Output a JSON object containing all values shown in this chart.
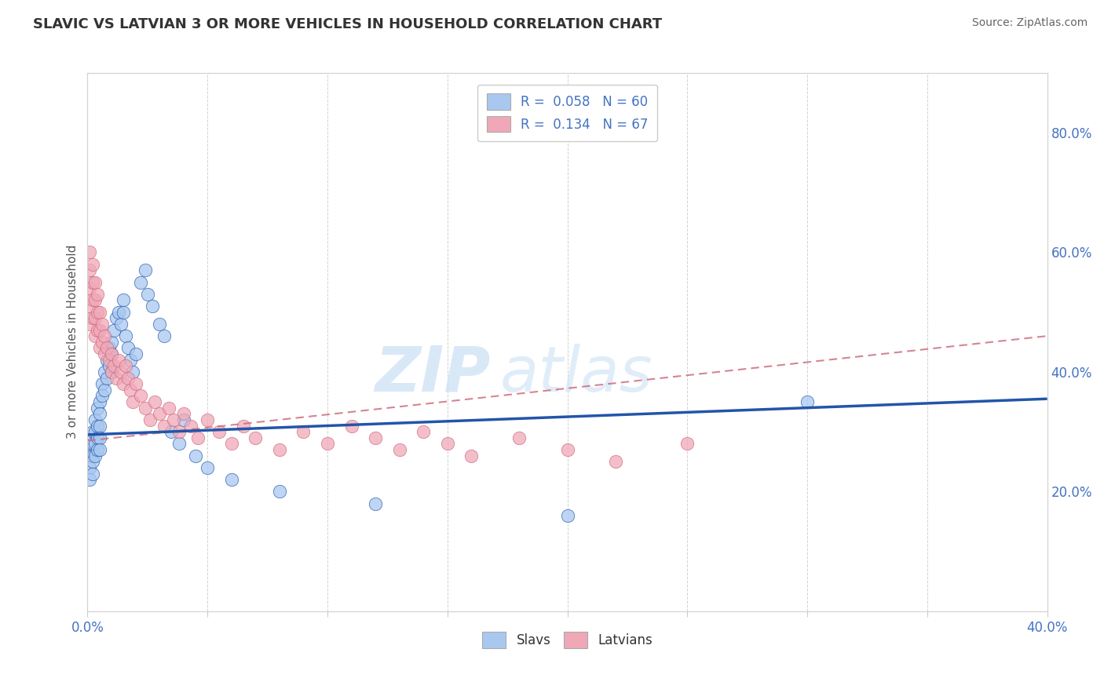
{
  "title": "SLAVIC VS LATVIAN 3 OR MORE VEHICLES IN HOUSEHOLD CORRELATION CHART",
  "source_text": "Source: ZipAtlas.com",
  "ylabel": "3 or more Vehicles in Household",
  "xlim": [
    0.0,
    0.4
  ],
  "ylim": [
    0.0,
    0.9
  ],
  "slav_color": "#a8c8f0",
  "latvian_color": "#f0a8b8",
  "slav_line_color": "#2255aa",
  "latvian_line_color": "#cc6677",
  "watermark_zip": "ZIP",
  "watermark_atlas": "atlas",
  "slav_scatter_x": [
    0.001,
    0.001,
    0.001,
    0.001,
    0.002,
    0.002,
    0.002,
    0.002,
    0.002,
    0.003,
    0.003,
    0.003,
    0.003,
    0.004,
    0.004,
    0.004,
    0.004,
    0.005,
    0.005,
    0.005,
    0.005,
    0.005,
    0.006,
    0.006,
    0.007,
    0.007,
    0.008,
    0.008,
    0.009,
    0.009,
    0.01,
    0.01,
    0.01,
    0.011,
    0.012,
    0.013,
    0.014,
    0.015,
    0.015,
    0.016,
    0.017,
    0.018,
    0.019,
    0.02,
    0.022,
    0.024,
    0.025,
    0.027,
    0.03,
    0.032,
    0.035,
    0.038,
    0.04,
    0.045,
    0.05,
    0.06,
    0.08,
    0.12,
    0.2,
    0.3
  ],
  "slav_scatter_y": [
    0.27,
    0.26,
    0.24,
    0.22,
    0.3,
    0.28,
    0.26,
    0.25,
    0.23,
    0.32,
    0.3,
    0.28,
    0.26,
    0.34,
    0.31,
    0.29,
    0.27,
    0.35,
    0.33,
    0.31,
    0.29,
    0.27,
    0.38,
    0.36,
    0.4,
    0.37,
    0.42,
    0.39,
    0.44,
    0.41,
    0.45,
    0.43,
    0.4,
    0.47,
    0.49,
    0.5,
    0.48,
    0.52,
    0.5,
    0.46,
    0.44,
    0.42,
    0.4,
    0.43,
    0.55,
    0.57,
    0.53,
    0.51,
    0.48,
    0.46,
    0.3,
    0.28,
    0.32,
    0.26,
    0.24,
    0.22,
    0.2,
    0.18,
    0.16,
    0.35
  ],
  "latvian_scatter_x": [
    0.001,
    0.001,
    0.001,
    0.001,
    0.001,
    0.002,
    0.002,
    0.002,
    0.002,
    0.003,
    0.003,
    0.003,
    0.003,
    0.004,
    0.004,
    0.004,
    0.005,
    0.005,
    0.005,
    0.006,
    0.006,
    0.007,
    0.007,
    0.008,
    0.009,
    0.01,
    0.01,
    0.011,
    0.012,
    0.013,
    0.014,
    0.015,
    0.016,
    0.017,
    0.018,
    0.019,
    0.02,
    0.022,
    0.024,
    0.026,
    0.028,
    0.03,
    0.032,
    0.034,
    0.036,
    0.038,
    0.04,
    0.043,
    0.046,
    0.05,
    0.055,
    0.06,
    0.065,
    0.07,
    0.08,
    0.09,
    0.1,
    0.11,
    0.12,
    0.13,
    0.14,
    0.15,
    0.16,
    0.18,
    0.2,
    0.22,
    0.25
  ],
  "latvian_scatter_y": [
    0.6,
    0.57,
    0.54,
    0.51,
    0.48,
    0.58,
    0.55,
    0.52,
    0.49,
    0.55,
    0.52,
    0.49,
    0.46,
    0.53,
    0.5,
    0.47,
    0.5,
    0.47,
    0.44,
    0.48,
    0.45,
    0.46,
    0.43,
    0.44,
    0.42,
    0.4,
    0.43,
    0.41,
    0.39,
    0.42,
    0.4,
    0.38,
    0.41,
    0.39,
    0.37,
    0.35,
    0.38,
    0.36,
    0.34,
    0.32,
    0.35,
    0.33,
    0.31,
    0.34,
    0.32,
    0.3,
    0.33,
    0.31,
    0.29,
    0.32,
    0.3,
    0.28,
    0.31,
    0.29,
    0.27,
    0.3,
    0.28,
    0.31,
    0.29,
    0.27,
    0.3,
    0.28,
    0.26,
    0.29,
    0.27,
    0.25,
    0.28
  ],
  "slav_line_y0": 0.295,
  "slav_line_y1": 0.355,
  "latvian_line_y0": 0.285,
  "latvian_line_y1": 0.46
}
